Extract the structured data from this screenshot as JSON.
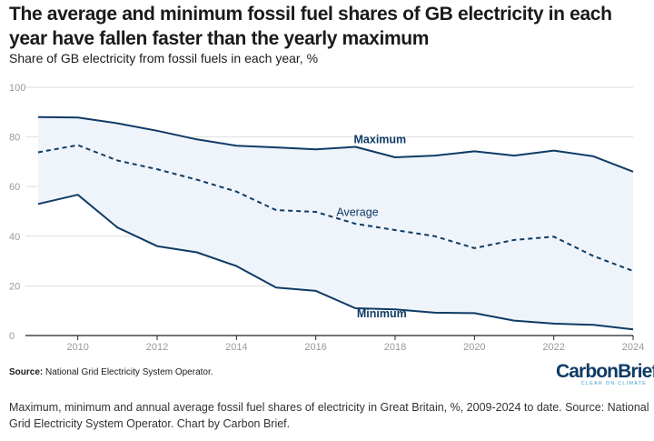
{
  "header": {
    "title": "The average and minimum fossil fuel shares of GB electricity in each year have fallen faster than the yearly maximum",
    "subtitle": "Share of GB electricity from fossil fuels in each year, %"
  },
  "footer": {
    "source_label": "Source:",
    "source_text": "National Grid Electricity System Operator.",
    "logo_text": "CarbonBrief",
    "logo_tagline": "CLEAR ON CLIMATE",
    "caption": "Maximum, minimum and annual average fossil fuel shares of electricity in Great Britain, %, 2009-2024 to date. Source: National Grid Electricity System Operator. Chart by Carbon Brief."
  },
  "colors": {
    "line": "#0f3b66",
    "band": "#eef4f9",
    "grid": "#dddddd",
    "axis": "#222222",
    "tick": "#999999"
  },
  "chart_data": {
    "type": "line",
    "title": "The average and minimum fossil fuel shares of GB electricity in each year have fallen faster than the yearly maximum",
    "subtitle": "Share of GB electricity from fossil fuels in each year, %",
    "xlabel": "",
    "ylabel": "",
    "x": [
      2009,
      2010,
      2011,
      2012,
      2013,
      2014,
      2015,
      2016,
      2017,
      2018,
      2019,
      2020,
      2021,
      2022,
      2023,
      2024
    ],
    "xlim": [
      2009,
      2024
    ],
    "ylim": [
      0,
      100
    ],
    "x_ticks": [
      2010,
      2012,
      2014,
      2016,
      2018,
      2020,
      2022,
      2024
    ],
    "y_ticks": [
      0,
      20,
      40,
      60,
      80,
      100
    ],
    "grid": true,
    "shaded_band": "between Maximum and Minimum",
    "series": [
      {
        "name": "Maximum",
        "style": "solid",
        "label_year": 2017,
        "values": [
          88,
          87.8,
          85.5,
          82.5,
          79,
          76.5,
          75.8,
          75,
          76,
          71.8,
          72.5,
          74.2,
          72.5,
          74.5,
          72.2,
          66
        ]
      },
      {
        "name": "Average",
        "style": "dashed",
        "label_year": 2016.5,
        "values": [
          73.8,
          76.7,
          70.5,
          67,
          62.8,
          58,
          50.5,
          49.8,
          45,
          42.5,
          40,
          35.2,
          38.5,
          39.8,
          32,
          26
        ]
      },
      {
        "name": "Minimum",
        "style": "solid",
        "label_year": 2017,
        "values": [
          53,
          56.7,
          43.5,
          36,
          33.5,
          28,
          19.3,
          18,
          11,
          10.5,
          9.2,
          9,
          6,
          4.8,
          4.3,
          2.5
        ]
      }
    ]
  }
}
